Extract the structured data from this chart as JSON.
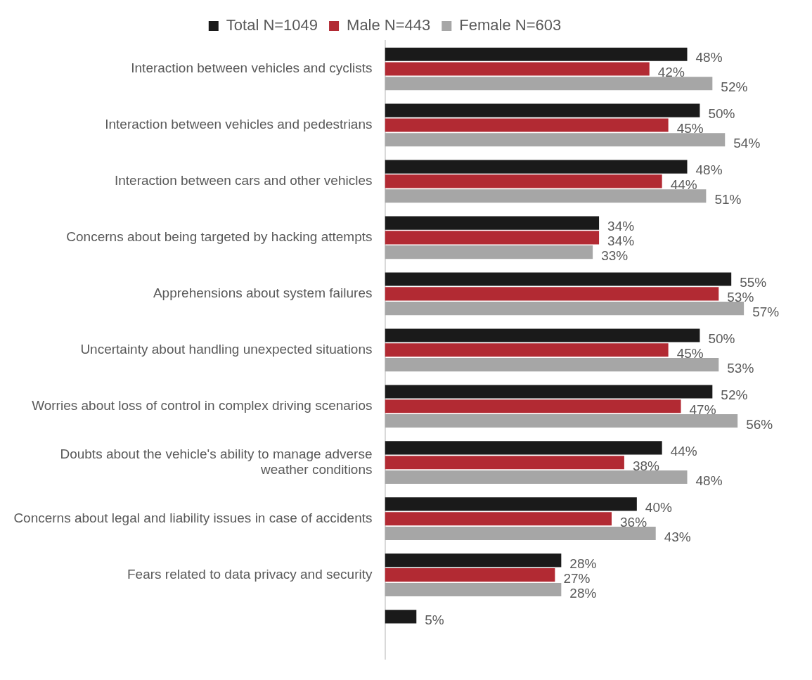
{
  "chart_data": {
    "type": "bar",
    "orientation": "horizontal",
    "legend": "top",
    "grid": false,
    "tick_labels": "y",
    "categories": [
      "Interaction between vehicles and cyclists",
      "Interaction between vehicles and pedestrians",
      "Interaction between cars and other vehicles",
      "Concerns about being targeted by hacking attempts",
      "Apprehensions about system failures",
      "Uncertainty about handling unexpected situations",
      "Worries about loss of control in complex driving scenarios",
      "Doubts about the vehicle's ability to manage adverse\nweather conditions",
      "Concerns about legal and liability issues in case of accidents",
      "Fears related to data privacy and security",
      null
    ],
    "series": [
      {
        "name": "Total N=1049",
        "color": "#1a1a1a",
        "values": [
          48,
          50,
          48,
          34,
          55,
          50,
          52,
          44,
          40,
          28,
          5
        ],
        "value_labels": [
          "48%",
          "50%",
          "48%",
          "34%",
          "55%",
          "50%",
          "52%",
          "44%",
          "40%",
          "28%",
          "5%"
        ]
      },
      {
        "name": "Male N=443",
        "color": "#b22a33",
        "values": [
          42,
          45,
          44,
          34,
          53,
          45,
          47,
          38,
          36,
          27,
          null
        ],
        "value_labels": [
          "42%",
          "45%",
          "44%",
          "34%",
          "53%",
          "45%",
          "47%",
          "38%",
          "36%",
          "27%",
          null
        ]
      },
      {
        "name": "Female N=603",
        "color": "#a6a6a6",
        "values": [
          52,
          54,
          51,
          33,
          57,
          53,
          56,
          48,
          43,
          28,
          null
        ],
        "value_labels": [
          "52%",
          "54%",
          "51%",
          "33%",
          "57%",
          "53%",
          "56%",
          "48%",
          "43%",
          "28%",
          null
        ]
      }
    ]
  }
}
